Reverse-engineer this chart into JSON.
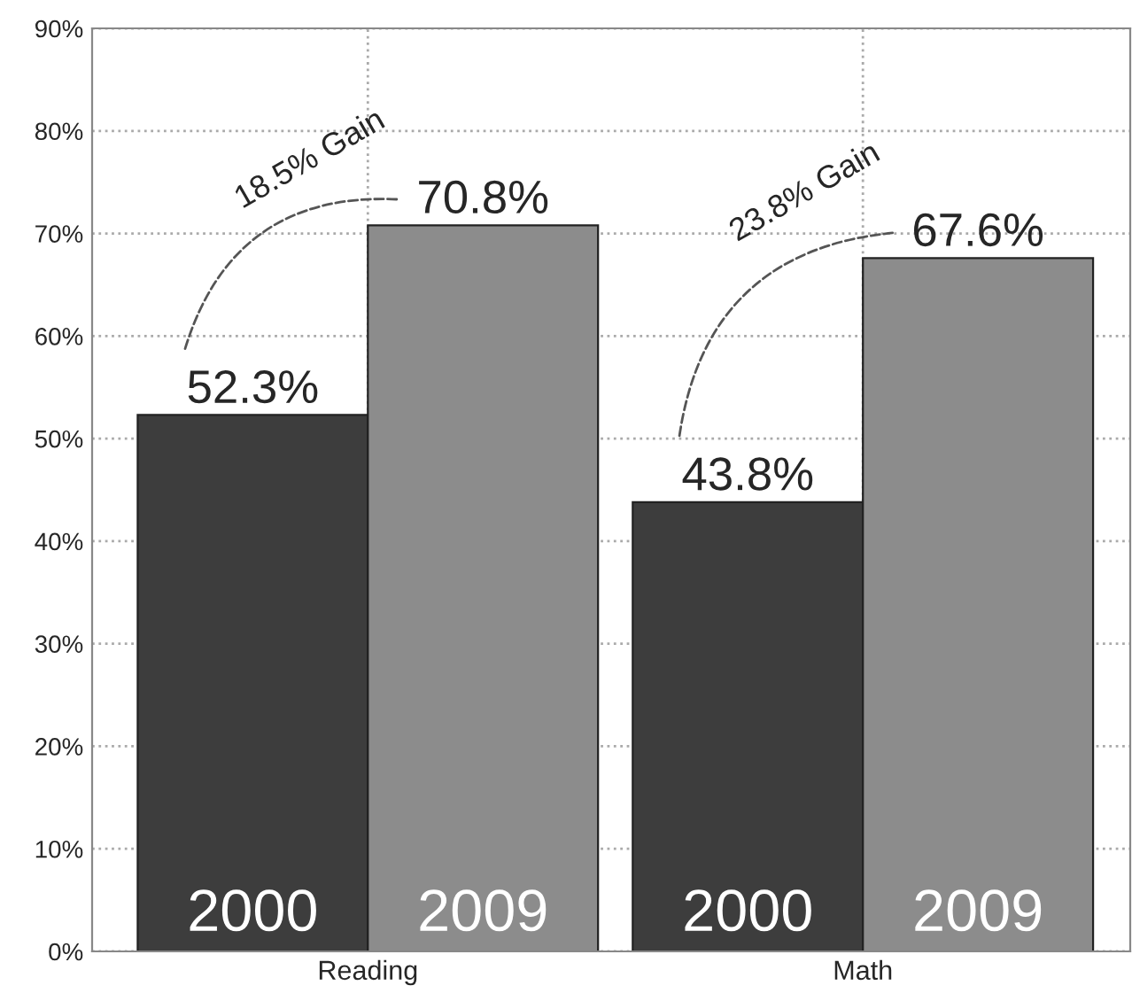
{
  "chart_data": {
    "type": "bar",
    "categories": [
      "Reading",
      "Math"
    ],
    "series": [
      {
        "name": "2000",
        "color": "#3d3d3d",
        "values": [
          52.3,
          43.8
        ]
      },
      {
        "name": "2009",
        "color": "#8c8c8c",
        "values": [
          70.8,
          67.6
        ]
      }
    ],
    "value_labels": [
      [
        "52.3%",
        "43.8%"
      ],
      [
        "70.8%",
        "67.6%"
      ]
    ],
    "annotations": [
      "18.5% Gain",
      "23.8% Gain"
    ],
    "ylim": [
      0,
      90
    ],
    "yticks": [
      {
        "value": 0,
        "label": "0%"
      },
      {
        "value": 10,
        "label": "10%"
      },
      {
        "value": 20,
        "label": "20%"
      },
      {
        "value": 30,
        "label": "30%"
      },
      {
        "value": 40,
        "label": "40%"
      },
      {
        "value": 50,
        "label": "50%"
      },
      {
        "value": 60,
        "label": "60%"
      },
      {
        "value": 70,
        "label": "70%"
      },
      {
        "value": 80,
        "label": "80%"
      },
      {
        "value": 90,
        "label": "90%"
      }
    ],
    "grid": true,
    "legend": false
  }
}
